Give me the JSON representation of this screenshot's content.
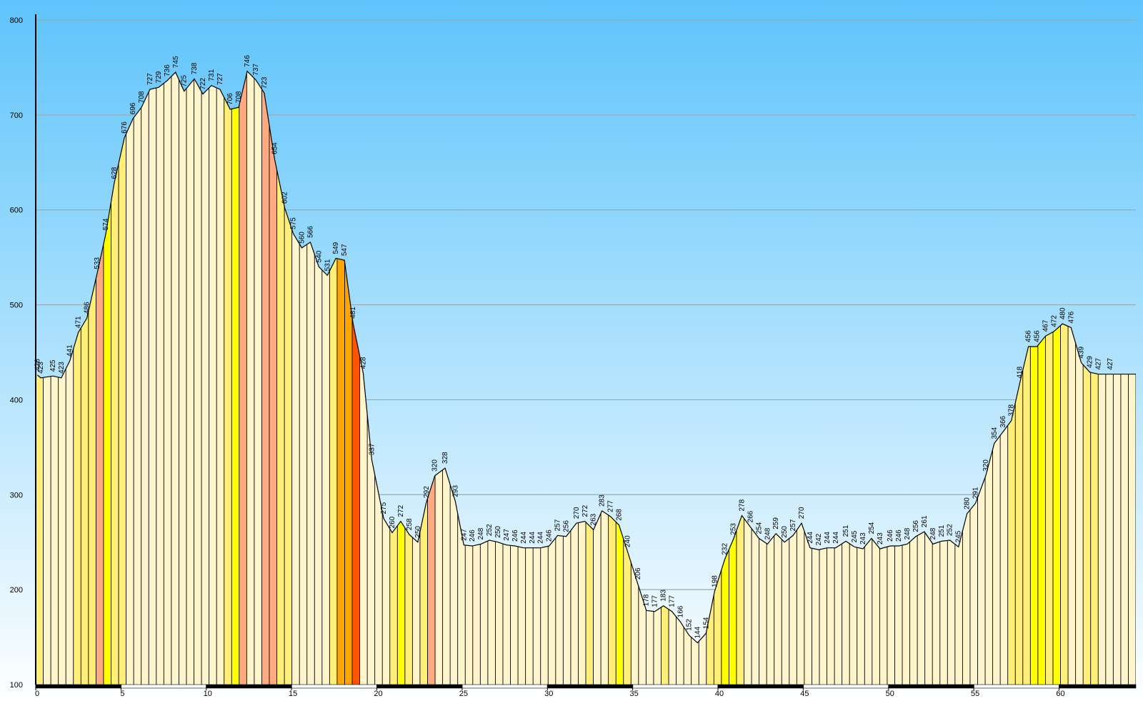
{
  "chart_data": {
    "type": "area",
    "title": "",
    "xlabel": "",
    "ylabel": "",
    "xlim": [
      0,
      64.5
    ],
    "ylim": [
      100,
      800
    ],
    "x_ticks": [
      0,
      5,
      10,
      15,
      20,
      25,
      30,
      35,
      40,
      45,
      50,
      55,
      60
    ],
    "y_ticks": [
      100,
      200,
      300,
      400,
      500,
      600,
      700,
      800
    ],
    "grid": true,
    "colors": {
      "sky_top": "#5ec4fb",
      "sky_bottom": "#ffffff",
      "gradient_0": "#fff5cc",
      "gradient_1": "#ffee77",
      "gradient_2": "#ffff00",
      "gradient_3": "#ffaa80",
      "gradient_4": "#ffa500",
      "gradient_5": "#ff5500",
      "outline": "#000000"
    },
    "elevation_labels": [
      {
        "x": 0.1,
        "label": "426"
      },
      {
        "x": 0.3,
        "label": "423"
      },
      {
        "x": 1.0,
        "label": "425"
      },
      {
        "x": 1.5,
        "label": "423"
      },
      {
        "x": 2.0,
        "label": "441"
      },
      {
        "x": 2.5,
        "label": "471"
      },
      {
        "x": 3.0,
        "label": "486"
      },
      {
        "x": 3.6,
        "label": "533"
      },
      {
        "x": 4.1,
        "label": "574"
      },
      {
        "x": 4.6,
        "label": "628"
      },
      {
        "x": 5.2,
        "label": "676"
      },
      {
        "x": 5.7,
        "label": "696"
      },
      {
        "x": 6.2,
        "label": "708"
      },
      {
        "x": 6.7,
        "label": "727"
      },
      {
        "x": 7.2,
        "label": "729"
      },
      {
        "x": 7.7,
        "label": "736"
      },
      {
        "x": 8.2,
        "label": "745"
      },
      {
        "x": 8.7,
        "label": "725"
      },
      {
        "x": 9.3,
        "label": "738"
      },
      {
        "x": 9.8,
        "label": "722"
      },
      {
        "x": 10.3,
        "label": "731"
      },
      {
        "x": 10.8,
        "label": "727"
      },
      {
        "x": 11.4,
        "label": "706"
      },
      {
        "x": 11.9,
        "label": "708"
      },
      {
        "x": 12.4,
        "label": "746"
      },
      {
        "x": 12.9,
        "label": "737"
      },
      {
        "x": 13.4,
        "label": "723"
      },
      {
        "x": 14.0,
        "label": "654"
      },
      {
        "x": 14.6,
        "label": "602"
      },
      {
        "x": 15.1,
        "label": "575"
      },
      {
        "x": 15.6,
        "label": "560"
      },
      {
        "x": 16.1,
        "label": "566"
      },
      {
        "x": 16.6,
        "label": "540"
      },
      {
        "x": 17.1,
        "label": "531"
      },
      {
        "x": 17.6,
        "label": "549"
      },
      {
        "x": 18.1,
        "label": "547"
      },
      {
        "x": 18.6,
        "label": "481"
      },
      {
        "x": 19.2,
        "label": "428"
      },
      {
        "x": 19.7,
        "label": "337"
      },
      {
        "x": 20.4,
        "label": "275"
      },
      {
        "x": 20.9,
        "label": "260"
      },
      {
        "x": 21.4,
        "label": "272"
      },
      {
        "x": 21.9,
        "label": "258"
      },
      {
        "x": 22.4,
        "label": "250"
      },
      {
        "x": 22.9,
        "label": "292"
      },
      {
        "x": 23.4,
        "label": "320"
      },
      {
        "x": 24.0,
        "label": "328"
      },
      {
        "x": 24.6,
        "label": "293"
      },
      {
        "x": 25.1,
        "label": "247"
      },
      {
        "x": 25.6,
        "label": "246"
      },
      {
        "x": 26.1,
        "label": "248"
      },
      {
        "x": 26.6,
        "label": "252"
      },
      {
        "x": 27.1,
        "label": "250"
      },
      {
        "x": 27.6,
        "label": "247"
      },
      {
        "x": 28.1,
        "label": "246"
      },
      {
        "x": 28.6,
        "label": "244"
      },
      {
        "x": 29.1,
        "label": "244"
      },
      {
        "x": 29.6,
        "label": "244"
      },
      {
        "x": 30.1,
        "label": "246"
      },
      {
        "x": 30.6,
        "label": "257"
      },
      {
        "x": 31.1,
        "label": "256"
      },
      {
        "x": 31.7,
        "label": "270"
      },
      {
        "x": 32.2,
        "label": "272"
      },
      {
        "x": 32.7,
        "label": "263"
      },
      {
        "x": 33.2,
        "label": "283"
      },
      {
        "x": 33.7,
        "label": "277"
      },
      {
        "x": 34.2,
        "label": "268"
      },
      {
        "x": 34.7,
        "label": "240"
      },
      {
        "x": 35.3,
        "label": "206"
      },
      {
        "x": 35.8,
        "label": "178"
      },
      {
        "x": 36.3,
        "label": "177"
      },
      {
        "x": 36.8,
        "label": "183"
      },
      {
        "x": 37.3,
        "label": "177"
      },
      {
        "x": 37.8,
        "label": "166"
      },
      {
        "x": 38.3,
        "label": "152"
      },
      {
        "x": 38.8,
        "label": "144"
      },
      {
        "x": 39.3,
        "label": "154"
      },
      {
        "x": 39.8,
        "label": "198"
      },
      {
        "x": 40.4,
        "label": "232"
      },
      {
        "x": 40.9,
        "label": "253"
      },
      {
        "x": 41.4,
        "label": "278"
      },
      {
        "x": 41.9,
        "label": "266"
      },
      {
        "x": 42.4,
        "label": "254"
      },
      {
        "x": 42.9,
        "label": "248"
      },
      {
        "x": 43.4,
        "label": "259"
      },
      {
        "x": 43.9,
        "label": "250"
      },
      {
        "x": 44.4,
        "label": "257"
      },
      {
        "x": 44.9,
        "label": "270"
      },
      {
        "x": 45.4,
        "label": "244"
      },
      {
        "x": 45.9,
        "label": "242"
      },
      {
        "x": 46.4,
        "label": "244"
      },
      {
        "x": 46.9,
        "label": "244"
      },
      {
        "x": 47.5,
        "label": "251"
      },
      {
        "x": 48.0,
        "label": "245"
      },
      {
        "x": 48.5,
        "label": "243"
      },
      {
        "x": 49.0,
        "label": "254"
      },
      {
        "x": 49.5,
        "label": "243"
      },
      {
        "x": 50.1,
        "label": "246"
      },
      {
        "x": 50.6,
        "label": "246"
      },
      {
        "x": 51.1,
        "label": "248"
      },
      {
        "x": 51.6,
        "label": "256"
      },
      {
        "x": 52.1,
        "label": "261"
      },
      {
        "x": 52.6,
        "label": "248"
      },
      {
        "x": 53.1,
        "label": "251"
      },
      {
        "x": 53.6,
        "label": "252"
      },
      {
        "x": 54.1,
        "label": "245"
      },
      {
        "x": 54.6,
        "label": "280"
      },
      {
        "x": 55.1,
        "label": "291"
      },
      {
        "x": 55.7,
        "label": "320"
      },
      {
        "x": 56.2,
        "label": "354"
      },
      {
        "x": 56.7,
        "label": "366"
      },
      {
        "x": 57.2,
        "label": "378"
      },
      {
        "x": 57.7,
        "label": "418"
      },
      {
        "x": 58.2,
        "label": "456"
      },
      {
        "x": 58.7,
        "label": "456"
      },
      {
        "x": 59.2,
        "label": "467"
      },
      {
        "x": 59.7,
        "label": "472"
      },
      {
        "x": 60.2,
        "label": "480"
      },
      {
        "x": 60.7,
        "label": "476"
      },
      {
        "x": 61.3,
        "label": "439"
      },
      {
        "x": 61.8,
        "label": "429"
      },
      {
        "x": 62.3,
        "label": "427"
      },
      {
        "x": 63.0,
        "label": "427"
      }
    ],
    "gradient_classes": [
      1,
      0,
      0,
      0,
      0,
      1,
      1,
      1,
      3,
      2,
      1,
      1,
      0,
      0,
      0,
      0,
      0,
      0,
      0,
      0,
      0,
      0,
      0,
      0,
      0,
      1,
      2,
      3,
      0,
      0,
      3,
      3,
      1,
      1,
      0,
      0,
      0,
      0,
      0,
      1,
      4,
      4,
      5,
      0,
      0,
      0,
      0,
      1,
      2,
      1,
      0,
      1,
      3,
      0,
      0,
      0,
      0,
      0,
      0,
      0,
      0,
      0,
      0,
      0,
      0,
      0,
      0,
      0,
      0,
      0,
      0,
      0,
      0,
      1,
      0,
      0,
      1,
      2,
      1,
      0,
      0,
      0,
      0,
      1,
      0,
      0,
      0,
      0,
      0,
      1,
      1,
      2,
      2,
      1,
      0,
      0,
      0,
      0,
      0,
      0,
      0,
      0,
      0,
      0,
      0,
      0,
      0,
      0,
      0,
      0,
      0,
      0,
      0,
      0,
      0,
      0,
      0,
      0,
      0,
      0,
      0,
      0,
      0,
      0,
      0,
      0,
      0,
      0,
      0,
      1,
      1,
      1,
      2,
      2,
      1,
      2,
      1,
      0,
      0,
      1,
      1,
      0,
      0,
      0,
      0,
      0
    ]
  }
}
